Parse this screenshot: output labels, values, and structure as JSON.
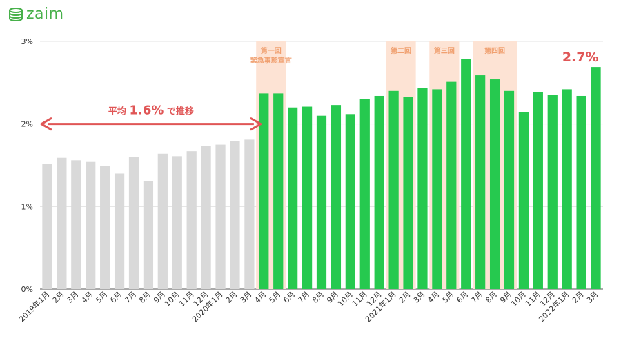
{
  "brand": {
    "name": "zaim",
    "color": "#47b04a"
  },
  "chart_data": {
    "type": "bar",
    "ylim": [
      0,
      3
    ],
    "yticks": [
      {
        "value": 0,
        "label": "0%"
      },
      {
        "value": 1,
        "label": "1%"
      },
      {
        "value": 2,
        "label": "2%"
      },
      {
        "value": 3,
        "label": "3%"
      }
    ],
    "grid": true,
    "categories": [
      "2019年1月",
      "2月",
      "3月",
      "4月",
      "5月",
      "6月",
      "7月",
      "8月",
      "9月",
      "10月",
      "11月",
      "12月",
      "2020年1月",
      "2月",
      "3月",
      "4月",
      "5月",
      "6月",
      "7月",
      "8月",
      "9月",
      "10月",
      "11月",
      "12月",
      "2021年1月",
      "2月",
      "3月",
      "4月",
      "5月",
      "6月",
      "7月",
      "8月",
      "9月",
      "10月",
      "11月",
      "12月",
      "2022年1月",
      "2月",
      "3月"
    ],
    "values": [
      1.52,
      1.59,
      1.56,
      1.54,
      1.49,
      1.4,
      1.6,
      1.31,
      1.64,
      1.61,
      1.67,
      1.73,
      1.75,
      1.79,
      1.81,
      2.37,
      2.37,
      2.2,
      2.21,
      2.1,
      2.23,
      2.12,
      2.3,
      2.34,
      2.4,
      2.33,
      2.44,
      2.42,
      2.51,
      2.79,
      2.59,
      2.54,
      2.4,
      2.14,
      2.39,
      2.35,
      2.42,
      2.34,
      2.69
    ],
    "colors": {
      "before": "#d9d9d9",
      "after": "#26c94f",
      "highlight_band": "#fde3d4",
      "band_text": "#f0a070",
      "arrow": "#e05656",
      "value_callout": "#e05656",
      "grid": "#e3e3e3",
      "axis": "#555555"
    },
    "split_index": 15,
    "bands": [
      {
        "start_index": 15,
        "end_index": 16,
        "label_lines": [
          "第一回",
          "緊急事態宣言"
        ]
      },
      {
        "start_index": 24,
        "end_index": 25,
        "label_lines": [
          "第二回"
        ]
      },
      {
        "start_index": 27,
        "end_index": 28,
        "label_lines": [
          "第三回"
        ]
      },
      {
        "start_index": 30,
        "end_index": 32,
        "label_lines": [
          "第四回"
        ]
      }
    ],
    "average_annotation": {
      "prefix": "平均",
      "value": "1.6%",
      "suffix": "で推移",
      "level": 2.0,
      "start_index": 0,
      "end_index": 14
    },
    "last_value_callout": {
      "text": "2.7%",
      "index": 38
    }
  }
}
